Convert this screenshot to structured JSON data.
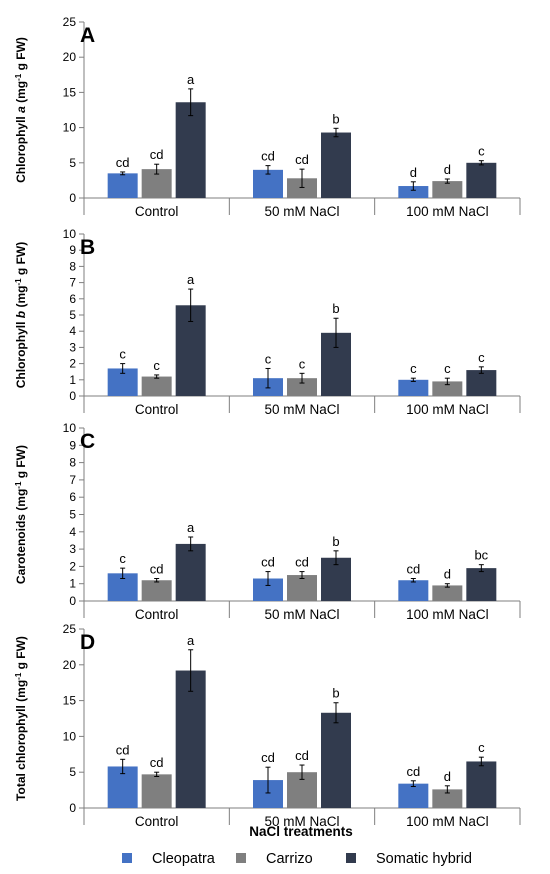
{
  "colors": {
    "Cleopatra": "#4472c4",
    "Carrizo": "#7f7f7f",
    "Somatic hybrid": "#323b4e"
  },
  "legend": [
    "Cleopatra",
    "Carrizo",
    "Somatic hybrid"
  ],
  "xlabel": "NaCl treatments",
  "chart_data": [
    {
      "type": "bar",
      "panel": "A",
      "ylabel": "Chlorophyll a (mg⁻¹ g FW)",
      "ylabel_parts": [
        [
          "Chlorophyll ",
          "n"
        ],
        [
          "a",
          "i"
        ],
        [
          " (mg",
          "n"
        ],
        [
          "-1",
          "s"
        ],
        [
          " g FW)",
          "n"
        ]
      ],
      "ylim": [
        0,
        25
      ],
      "yticks": [
        0,
        5,
        10,
        15,
        20,
        25
      ],
      "categories": [
        "Control",
        "50 mM NaCl",
        "100 mM NaCl"
      ],
      "series": [
        {
          "name": "Cleopatra",
          "values": [
            3.5,
            4.0,
            1.7
          ],
          "errors": [
            0.2,
            0.6,
            0.6
          ],
          "letters": [
            "cd",
            "cd",
            "d"
          ]
        },
        {
          "name": "Carrizo",
          "values": [
            4.1,
            2.8,
            2.4
          ],
          "errors": [
            0.7,
            1.3,
            0.3
          ],
          "letters": [
            "cd",
            "cd",
            "d"
          ]
        },
        {
          "name": "Somatic hybrid",
          "values": [
            13.6,
            9.3,
            5.0
          ],
          "errors": [
            1.9,
            0.6,
            0.3
          ],
          "letters": [
            "a",
            "b",
            "c"
          ]
        }
      ]
    },
    {
      "type": "bar",
      "panel": "B",
      "ylabel": "Chlorophyll b (mg⁻¹ g FW)",
      "ylabel_parts": [
        [
          "Chlorophyll ",
          "n"
        ],
        [
          "b",
          "i"
        ],
        [
          " (mg",
          "n"
        ],
        [
          "-1",
          "s"
        ],
        [
          " g FW)",
          "n"
        ]
      ],
      "ylim": [
        0,
        10
      ],
      "yticks": [
        0,
        1,
        2,
        3,
        4,
        5,
        6,
        7,
        8,
        9,
        10
      ],
      "categories": [
        "Control",
        "50 mM NaCl",
        "100 mM NaCl"
      ],
      "series": [
        {
          "name": "Cleopatra",
          "values": [
            1.7,
            1.1,
            1.0
          ],
          "errors": [
            0.3,
            0.6,
            0.1
          ],
          "letters": [
            "c",
            "c",
            "c"
          ]
        },
        {
          "name": "Carrizo",
          "values": [
            1.2,
            1.1,
            0.9
          ],
          "errors": [
            0.1,
            0.3,
            0.2
          ],
          "letters": [
            "c",
            "c",
            "c"
          ]
        },
        {
          "name": "Somatic hybrid",
          "values": [
            5.6,
            3.9,
            1.6
          ],
          "errors": [
            1.0,
            0.9,
            0.2
          ],
          "letters": [
            "a",
            "b",
            "c"
          ]
        }
      ]
    },
    {
      "type": "bar",
      "panel": "C",
      "ylabel": "Carotenoids (mg⁻¹ g FW)",
      "ylabel_parts": [
        [
          "Carotenoids (mg",
          "n"
        ],
        [
          "-1",
          "s"
        ],
        [
          " g FW)",
          "n"
        ]
      ],
      "ylim": [
        0,
        10
      ],
      "yticks": [
        0,
        1,
        2,
        3,
        4,
        5,
        6,
        7,
        8,
        9,
        10
      ],
      "categories": [
        "Control",
        "50 mM NaCl",
        "100 mM NaCl"
      ],
      "series": [
        {
          "name": "Cleopatra",
          "values": [
            1.6,
            1.3,
            1.2
          ],
          "errors": [
            0.3,
            0.4,
            0.1
          ],
          "letters": [
            "c",
            "cd",
            "cd"
          ]
        },
        {
          "name": "Carrizo",
          "values": [
            1.2,
            1.5,
            0.9
          ],
          "errors": [
            0.1,
            0.2,
            0.1
          ],
          "letters": [
            "cd",
            "cd",
            "d"
          ]
        },
        {
          "name": "Somatic hybrid",
          "values": [
            3.3,
            2.5,
            1.9
          ],
          "errors": [
            0.4,
            0.4,
            0.2
          ],
          "letters": [
            "a",
            "b",
            "bc"
          ]
        }
      ]
    },
    {
      "type": "bar",
      "panel": "D",
      "ylabel": "Total chlorophyll (mg⁻¹ g FW)",
      "ylabel_parts": [
        [
          "Total chlorophyll (mg",
          "n"
        ],
        [
          "-1",
          "s"
        ],
        [
          " g FW)",
          "n"
        ]
      ],
      "ylim": [
        0,
        25
      ],
      "yticks": [
        0,
        5,
        10,
        15,
        20,
        25
      ],
      "categories": [
        "Control",
        "50 mM NaCl",
        "100 mM NaCl"
      ],
      "series": [
        {
          "name": "Cleopatra",
          "values": [
            5.8,
            3.9,
            3.4
          ],
          "errors": [
            1.0,
            1.8,
            0.4
          ],
          "letters": [
            "cd",
            "cd",
            "cd"
          ]
        },
        {
          "name": "Carrizo",
          "values": [
            4.7,
            5.0,
            2.6
          ],
          "errors": [
            0.3,
            1.0,
            0.5
          ],
          "letters": [
            "cd",
            "cd",
            "d"
          ]
        },
        {
          "name": "Somatic hybrid",
          "values": [
            19.2,
            13.3,
            6.5
          ],
          "errors": [
            2.9,
            1.4,
            0.6
          ],
          "letters": [
            "a",
            "b",
            "c"
          ]
        }
      ]
    }
  ]
}
